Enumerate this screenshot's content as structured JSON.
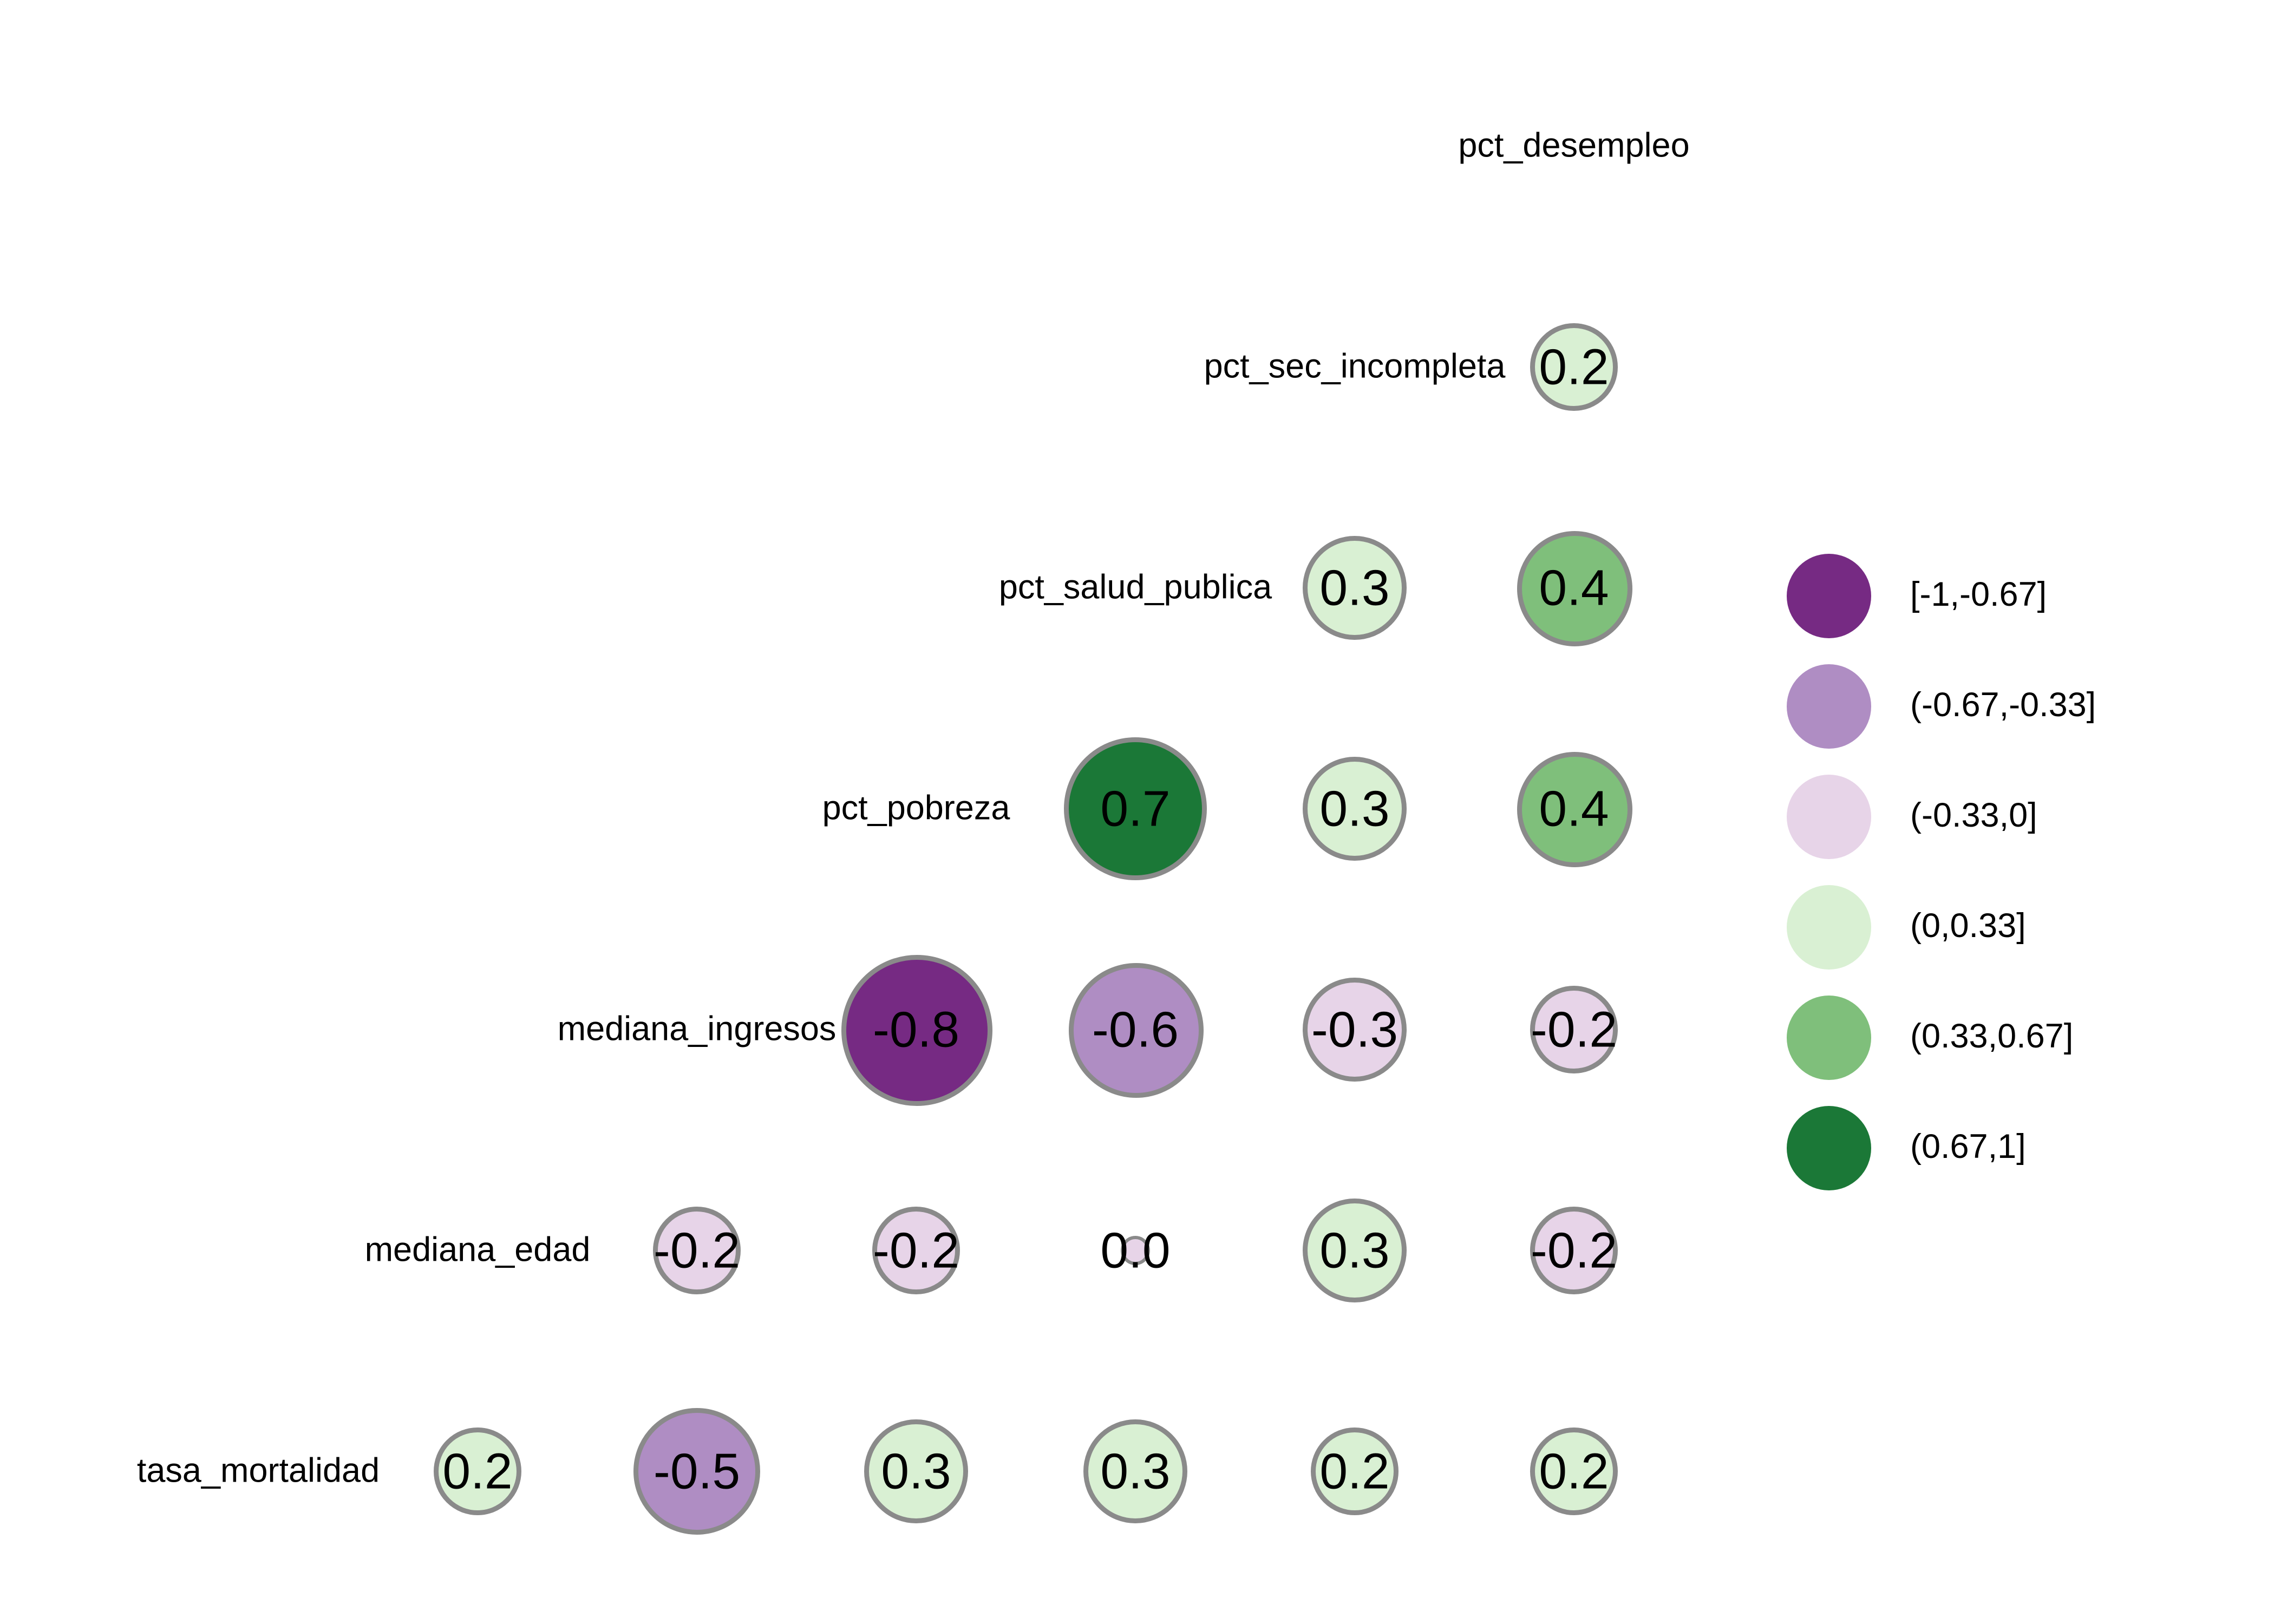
{
  "styles": {
    "background": "#ffffff",
    "circle_stroke": "#8a8a8a",
    "text_color": "#000000"
  },
  "chart_data": {
    "type": "scatter",
    "subtype": "correlation-bubble-matrix",
    "title": "",
    "legend_position": "right",
    "variables": [
      "pct_desempleo",
      "pct_sec_incompleta",
      "pct_salud_publica",
      "pct_pobreza",
      "mediana_ingresos",
      "mediana_edad",
      "tasa_mortalidad"
    ],
    "palette": {
      "bins": [
        "[-1,-0.67]",
        "(-0.67,-0.33]",
        "(-0.33,0]",
        "(0,0.33]",
        "(0.33,0.67]",
        "(0.67,1]"
      ],
      "colors": [
        "#762a83",
        "#af8dc3",
        "#e7d4e8",
        "#d9f0d3",
        "#7fbf7b",
        "#1b7837"
      ]
    },
    "legend": [
      {
        "range": "[-1,-0.67]",
        "color": "#762a83"
      },
      {
        "range": "(-0.67,-0.33]",
        "color": "#af8dc3"
      },
      {
        "range": "(-0.33,0]",
        "color": "#e7d4e8"
      },
      {
        "range": "(0,0.33]",
        "color": "#d9f0d3"
      },
      {
        "range": "(0.33,0.67]",
        "color": "#7fbf7b"
      },
      {
        "range": "(0.67,1]",
        "color": "#1b7837"
      }
    ],
    "cells": [
      {
        "row_var": "pct_sec_incompleta",
        "col_var": "pct_desempleo",
        "value": 0.2,
        "label": "0.2",
        "grid": [
          1,
          5
        ],
        "color": "#d9f0d3"
      },
      {
        "row_var": "pct_salud_publica",
        "col_var": "pct_sec_incompleta",
        "value": 0.3,
        "label": "0.3",
        "grid": [
          2,
          4
        ],
        "color": "#d9f0d3"
      },
      {
        "row_var": "pct_salud_publica",
        "col_var": "pct_desempleo",
        "value": 0.4,
        "label": "0.4",
        "grid": [
          2,
          5
        ],
        "color": "#7fbf7b"
      },
      {
        "row_var": "pct_pobreza",
        "col_var": "pct_salud_publica",
        "value": 0.7,
        "label": "0.7",
        "grid": [
          3,
          3
        ],
        "color": "#1b7837"
      },
      {
        "row_var": "pct_pobreza",
        "col_var": "pct_sec_incompleta",
        "value": 0.3,
        "label": "0.3",
        "grid": [
          3,
          4
        ],
        "color": "#d9f0d3"
      },
      {
        "row_var": "pct_pobreza",
        "col_var": "pct_desempleo",
        "value": 0.4,
        "label": "0.4",
        "grid": [
          3,
          5
        ],
        "color": "#7fbf7b"
      },
      {
        "row_var": "mediana_ingresos",
        "col_var": "pct_pobreza",
        "value": -0.8,
        "label": "-0.8",
        "grid": [
          4,
          2
        ],
        "color": "#762a83"
      },
      {
        "row_var": "mediana_ingresos",
        "col_var": "pct_salud_publica",
        "value": -0.6,
        "label": "-0.6",
        "grid": [
          4,
          3
        ],
        "color": "#af8dc3"
      },
      {
        "row_var": "mediana_ingresos",
        "col_var": "pct_sec_incompleta",
        "value": -0.3,
        "label": "-0.3",
        "grid": [
          4,
          4
        ],
        "color": "#e7d4e8"
      },
      {
        "row_var": "mediana_ingresos",
        "col_var": "pct_desempleo",
        "value": -0.2,
        "label": "-0.2",
        "grid": [
          4,
          5
        ],
        "color": "#e7d4e8"
      },
      {
        "row_var": "mediana_edad",
        "col_var": "mediana_ingresos",
        "value": -0.2,
        "label": "-0.2",
        "grid": [
          5,
          1
        ],
        "color": "#e7d4e8"
      },
      {
        "row_var": "mediana_edad",
        "col_var": "pct_pobreza",
        "value": -0.2,
        "label": "-0.2",
        "grid": [
          5,
          2
        ],
        "color": "#e7d4e8"
      },
      {
        "row_var": "mediana_edad",
        "col_var": "pct_salud_publica",
        "value": 0.0,
        "label": "0.0",
        "grid": [
          5,
          3
        ],
        "color": "#e7d4e8"
      },
      {
        "row_var": "mediana_edad",
        "col_var": "pct_sec_incompleta",
        "value": 0.3,
        "label": "0.3",
        "grid": [
          5,
          4
        ],
        "color": "#d9f0d3"
      },
      {
        "row_var": "mediana_edad",
        "col_var": "pct_desempleo",
        "value": -0.2,
        "label": "-0.2",
        "grid": [
          5,
          5
        ],
        "color": "#e7d4e8"
      },
      {
        "row_var": "tasa_mortalidad",
        "col_var": "mediana_edad",
        "value": 0.2,
        "label": "0.2",
        "grid": [
          6,
          0
        ],
        "color": "#d9f0d3"
      },
      {
        "row_var": "tasa_mortalidad",
        "col_var": "mediana_ingresos",
        "value": -0.5,
        "label": "-0.5",
        "grid": [
          6,
          1
        ],
        "color": "#af8dc3"
      },
      {
        "row_var": "tasa_mortalidad",
        "col_var": "pct_pobreza",
        "value": 0.3,
        "label": "0.3",
        "grid": [
          6,
          2
        ],
        "color": "#d9f0d3"
      },
      {
        "row_var": "tasa_mortalidad",
        "col_var": "pct_salud_publica",
        "value": 0.3,
        "label": "0.3",
        "grid": [
          6,
          3
        ],
        "color": "#d9f0d3"
      },
      {
        "row_var": "tasa_mortalidad",
        "col_var": "pct_sec_incompleta",
        "value": 0.2,
        "label": "0.2",
        "grid": [
          6,
          4
        ],
        "color": "#d9f0d3"
      },
      {
        "row_var": "tasa_mortalidad",
        "col_var": "pct_desempleo",
        "value": 0.2,
        "label": "0.2",
        "grid": [
          6,
          5
        ],
        "color": "#d9f0d3"
      }
    ]
  }
}
